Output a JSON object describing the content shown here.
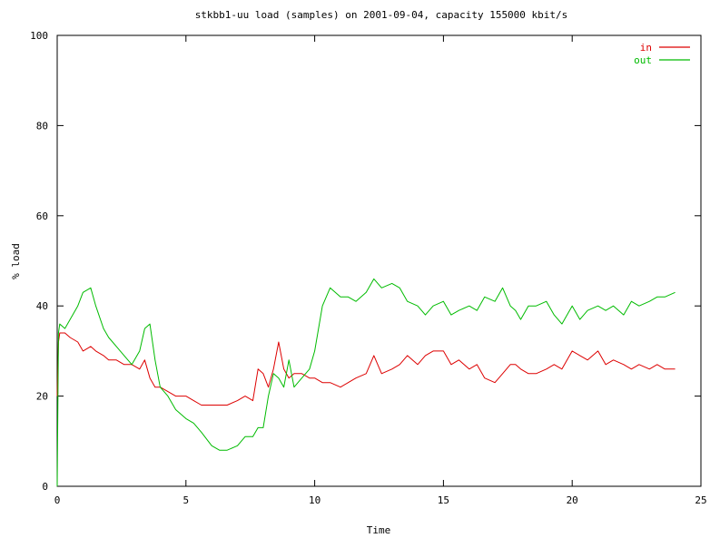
{
  "chart_data": {
    "type": "line",
    "title": "stkbb1-uu load (samples) on 2001-09-04, capacity 155000 kbit/s",
    "xlabel": "Time",
    "ylabel": "% load",
    "xlim": [
      0,
      25
    ],
    "ylim": [
      0,
      100
    ],
    "xticks": [
      0,
      5,
      10,
      15,
      20,
      25
    ],
    "yticks": [
      0,
      20,
      40,
      60,
      80,
      100
    ],
    "grid": false,
    "legend_position": "top-right",
    "series": [
      {
        "name": "in",
        "color": "#dd0000",
        "x": [
          0,
          0.05,
          0.1,
          0.3,
          0.5,
          0.8,
          1.0,
          1.3,
          1.5,
          1.8,
          2.0,
          2.3,
          2.6,
          2.9,
          3.2,
          3.4,
          3.6,
          3.8,
          4.0,
          4.3,
          4.6,
          5.0,
          5.3,
          5.6,
          6.0,
          6.3,
          6.6,
          7.0,
          7.3,
          7.6,
          7.8,
          8.0,
          8.2,
          8.4,
          8.6,
          8.8,
          9.0,
          9.2,
          9.5,
          9.8,
          10.0,
          10.3,
          10.6,
          11.0,
          11.3,
          11.6,
          12.0,
          12.3,
          12.6,
          13.0,
          13.3,
          13.6,
          14.0,
          14.3,
          14.6,
          15.0,
          15.3,
          15.6,
          16.0,
          16.3,
          16.6,
          17.0,
          17.3,
          17.6,
          17.8,
          18.0,
          18.3,
          18.6,
          19.0,
          19.3,
          19.6,
          20.0,
          20.3,
          20.6,
          21.0,
          21.3,
          21.6,
          22.0,
          22.3,
          22.6,
          23.0,
          23.3,
          23.6,
          24.0
        ],
        "values": [
          20,
          32,
          34,
          34,
          33,
          32,
          30,
          31,
          30,
          29,
          28,
          28,
          27,
          27,
          26,
          28,
          24,
          22,
          22,
          21,
          20,
          20,
          19,
          18,
          18,
          18,
          18,
          19,
          20,
          19,
          26,
          25,
          22,
          26,
          32,
          26,
          24,
          25,
          25,
          24,
          24,
          23,
          23,
          22,
          23,
          24,
          25,
          29,
          25,
          26,
          27,
          29,
          27,
          29,
          30,
          30,
          27,
          28,
          26,
          27,
          24,
          23,
          25,
          27,
          27,
          26,
          25,
          25,
          26,
          27,
          26,
          30,
          29,
          28,
          30,
          27,
          28,
          27,
          26,
          27,
          26,
          27,
          26,
          26
        ]
      },
      {
        "name": "out",
        "color": "#00bb00",
        "x": [
          0,
          0.05,
          0.1,
          0.3,
          0.5,
          0.8,
          1.0,
          1.3,
          1.5,
          1.8,
          2.0,
          2.3,
          2.6,
          2.9,
          3.2,
          3.4,
          3.6,
          3.8,
          4.0,
          4.3,
          4.6,
          5.0,
          5.3,
          5.6,
          6.0,
          6.3,
          6.6,
          7.0,
          7.3,
          7.6,
          7.8,
          8.0,
          8.2,
          8.4,
          8.6,
          8.8,
          9.0,
          9.2,
          9.5,
          9.8,
          10.0,
          10.3,
          10.6,
          11.0,
          11.3,
          11.6,
          12.0,
          12.3,
          12.6,
          13.0,
          13.3,
          13.6,
          14.0,
          14.3,
          14.6,
          15.0,
          15.3,
          15.6,
          16.0,
          16.3,
          16.6,
          17.0,
          17.3,
          17.6,
          17.8,
          18.0,
          18.3,
          18.6,
          19.0,
          19.3,
          19.6,
          20.0,
          20.3,
          20.6,
          21.0,
          21.3,
          21.6,
          22.0,
          22.3,
          22.6,
          23.0,
          23.3,
          23.6,
          24.0
        ],
        "values": [
          0,
          34,
          36,
          35,
          37,
          40,
          43,
          44,
          40,
          35,
          33,
          31,
          29,
          27,
          30,
          35,
          36,
          28,
          22,
          20,
          17,
          15,
          14,
          12,
          9,
          8,
          8,
          9,
          11,
          11,
          13,
          13,
          20,
          25,
          24,
          22,
          28,
          22,
          24,
          26,
          30,
          40,
          44,
          42,
          42,
          41,
          43,
          46,
          44,
          45,
          44,
          41,
          40,
          38,
          40,
          41,
          38,
          39,
          40,
          39,
          42,
          41,
          44,
          40,
          39,
          37,
          40,
          40,
          41,
          38,
          36,
          40,
          37,
          39,
          40,
          39,
          40,
          38,
          41,
          40,
          41,
          42,
          42,
          43
        ]
      }
    ]
  }
}
